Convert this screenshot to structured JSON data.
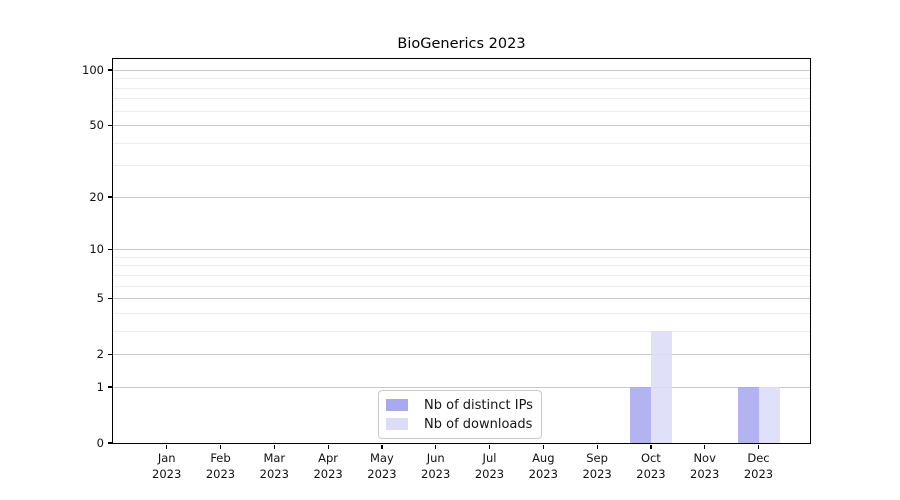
{
  "title": "BioGenerics 2023",
  "chart_data": {
    "type": "bar",
    "title": "BioGenerics 2023",
    "categories": [
      "Jan",
      "Feb",
      "Mar",
      "Apr",
      "May",
      "Jun",
      "Jul",
      "Aug",
      "Sep",
      "Oct",
      "Nov",
      "Dec"
    ],
    "year_label": "2023",
    "series": [
      {
        "name": "Nb of distinct IPs",
        "color": "#a9a9f0",
        "values": [
          0,
          0,
          0,
          0,
          0,
          0,
          0,
          0,
          0,
          1,
          0,
          1
        ]
      },
      {
        "name": "Nb of downloads",
        "color": "#dcdcf8",
        "values": [
          0,
          0,
          0,
          0,
          0,
          0,
          0,
          0,
          0,
          3,
          0,
          1
        ]
      }
    ],
    "xlabel": "",
    "ylabel": "",
    "yscale": "log1p",
    "yticks_major": [
      0,
      1,
      2,
      5,
      10,
      20,
      50,
      100
    ],
    "yticks_minor": [
      3,
      4,
      6,
      7,
      8,
      9,
      30,
      40,
      60,
      70,
      80,
      90
    ],
    "ylim": [
      0,
      114
    ],
    "grid": "horizontal",
    "legend_position": "lower-center-inside"
  },
  "colors": {
    "bar_distinct_ips": "#a9a9f0",
    "bar_downloads": "#dcdcf8",
    "grid_major": "#c9c9c9",
    "grid_minor": "#ececec",
    "spine": "#000000",
    "text": "#111111",
    "legend_border": "#c9c9c9"
  }
}
